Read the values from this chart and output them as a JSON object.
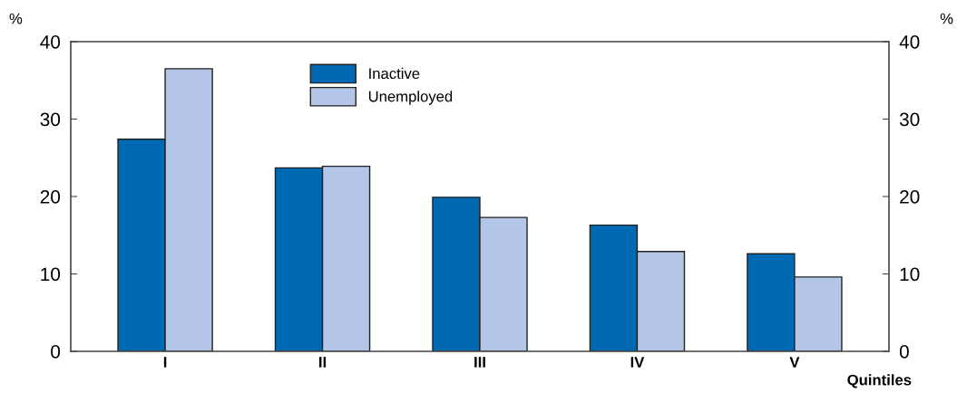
{
  "chart_data": {
    "type": "bar",
    "categories": [
      "I",
      "II",
      "III",
      "IV",
      "V"
    ],
    "series": [
      {
        "name": "Inactive",
        "color": "#0069b4",
        "values": [
          27.4,
          23.7,
          19.9,
          16.3,
          12.6
        ]
      },
      {
        "name": "Unemployed",
        "color": "#b3c6e7",
        "values": [
          36.5,
          23.9,
          17.3,
          12.9,
          9.6
        ]
      }
    ],
    "xlabel": "Quintiles",
    "ylabel": "%",
    "y2label": "%",
    "ylim": [
      0,
      40
    ],
    "yticks": [
      0,
      10,
      20,
      30,
      40
    ],
    "y2lim": [
      0,
      40
    ],
    "y2ticks": [
      0,
      10,
      20,
      30,
      40
    ],
    "legend": "top",
    "grid": false
  }
}
